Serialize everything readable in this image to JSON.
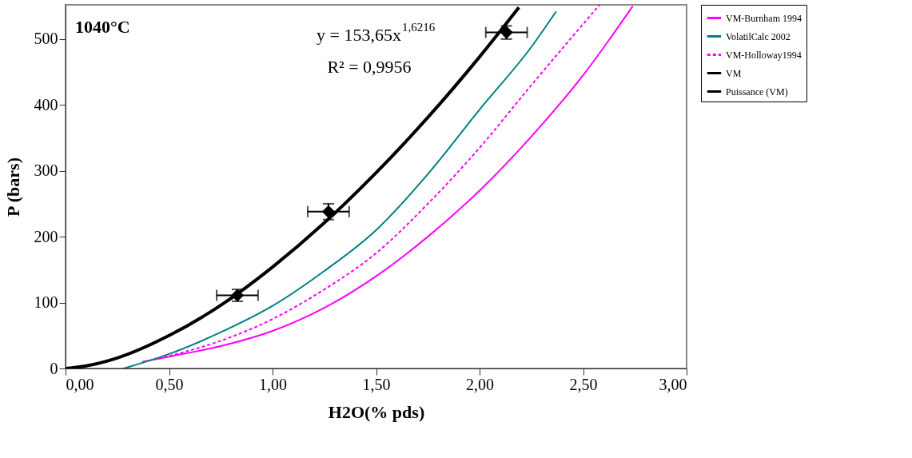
{
  "chart_data": {
    "type": "line",
    "xlabel": "H2O(% pds)",
    "ylabel": "P (bars)",
    "annotations": [
      "1040°C",
      "y = 153,65x$^{1,6216}$",
      "R² = 0,9956"
    ],
    "xlim": [
      0,
      3
    ],
    "ylim": [
      0,
      552
    ],
    "xticks": [
      {
        "value": 0,
        "label": "0,00"
      },
      {
        "value": 0.5,
        "label": "0,50"
      },
      {
        "value": 1,
        "label": "1,00"
      },
      {
        "value": 1.5,
        "label": "1,50"
      },
      {
        "value": 2,
        "label": "2,00"
      },
      {
        "value": 2.5,
        "label": "2,50"
      },
      {
        "value": 3,
        "label": "3,00"
      }
    ],
    "yticks": [
      0,
      100,
      200,
      300,
      400,
      500
    ],
    "grid": false,
    "legend": "right",
    "series": [
      {
        "name": "VM-Burnham 1994",
        "color": "#ff00ff",
        "line_style": "solid",
        "x": [
          0.37,
          0.5,
          0.75,
          1.0,
          1.25,
          1.5,
          1.75,
          2.0,
          2.25,
          2.5,
          2.74
        ],
        "values": [
          10,
          18,
          34,
          57,
          92,
          140,
          200,
          270,
          352,
          445,
          550
        ]
      },
      {
        "name": "VolatilCalc 2002",
        "color": "#008080",
        "line_style": "solid",
        "x": [
          0.28,
          0.5,
          0.75,
          1.0,
          1.25,
          1.5,
          1.75,
          2.0,
          2.25,
          2.37
        ],
        "values": [
          0,
          22,
          55,
          95,
          148,
          210,
          295,
          393,
          488,
          542
        ]
      },
      {
        "name": "VM-Holloway1994",
        "color": "#ff00ff",
        "line_style": "dashed",
        "x": [
          0.45,
          0.5,
          0.75,
          1.0,
          1.25,
          1.5,
          1.75,
          2.0,
          2.25,
          2.58
        ],
        "values": [
          15,
          19,
          42,
          75,
          120,
          175,
          250,
          335,
          430,
          552
        ]
      },
      {
        "name": "VM",
        "type": "scatter",
        "color": "#000000",
        "marker": "diamond",
        "x": [
          0.83,
          1.27,
          2.13
        ],
        "values": [
          111,
          238,
          510
        ],
        "errors": [
          9,
          12,
          10
        ],
        "xerrors": [
          0.1,
          0.1,
          0.1
        ]
      },
      {
        "name": "Puissance (VM)",
        "type": "line",
        "color": "#000000",
        "line_style": "solid",
        "x": [
          0,
          0.1,
          0.25,
          0.5,
          0.75,
          1.0,
          1.25,
          1.5,
          1.75,
          2.0,
          2.19
        ],
        "values": [
          0,
          4,
          16,
          50,
          96,
          154,
          221,
          297,
          381,
          473,
          548
        ]
      }
    ]
  }
}
